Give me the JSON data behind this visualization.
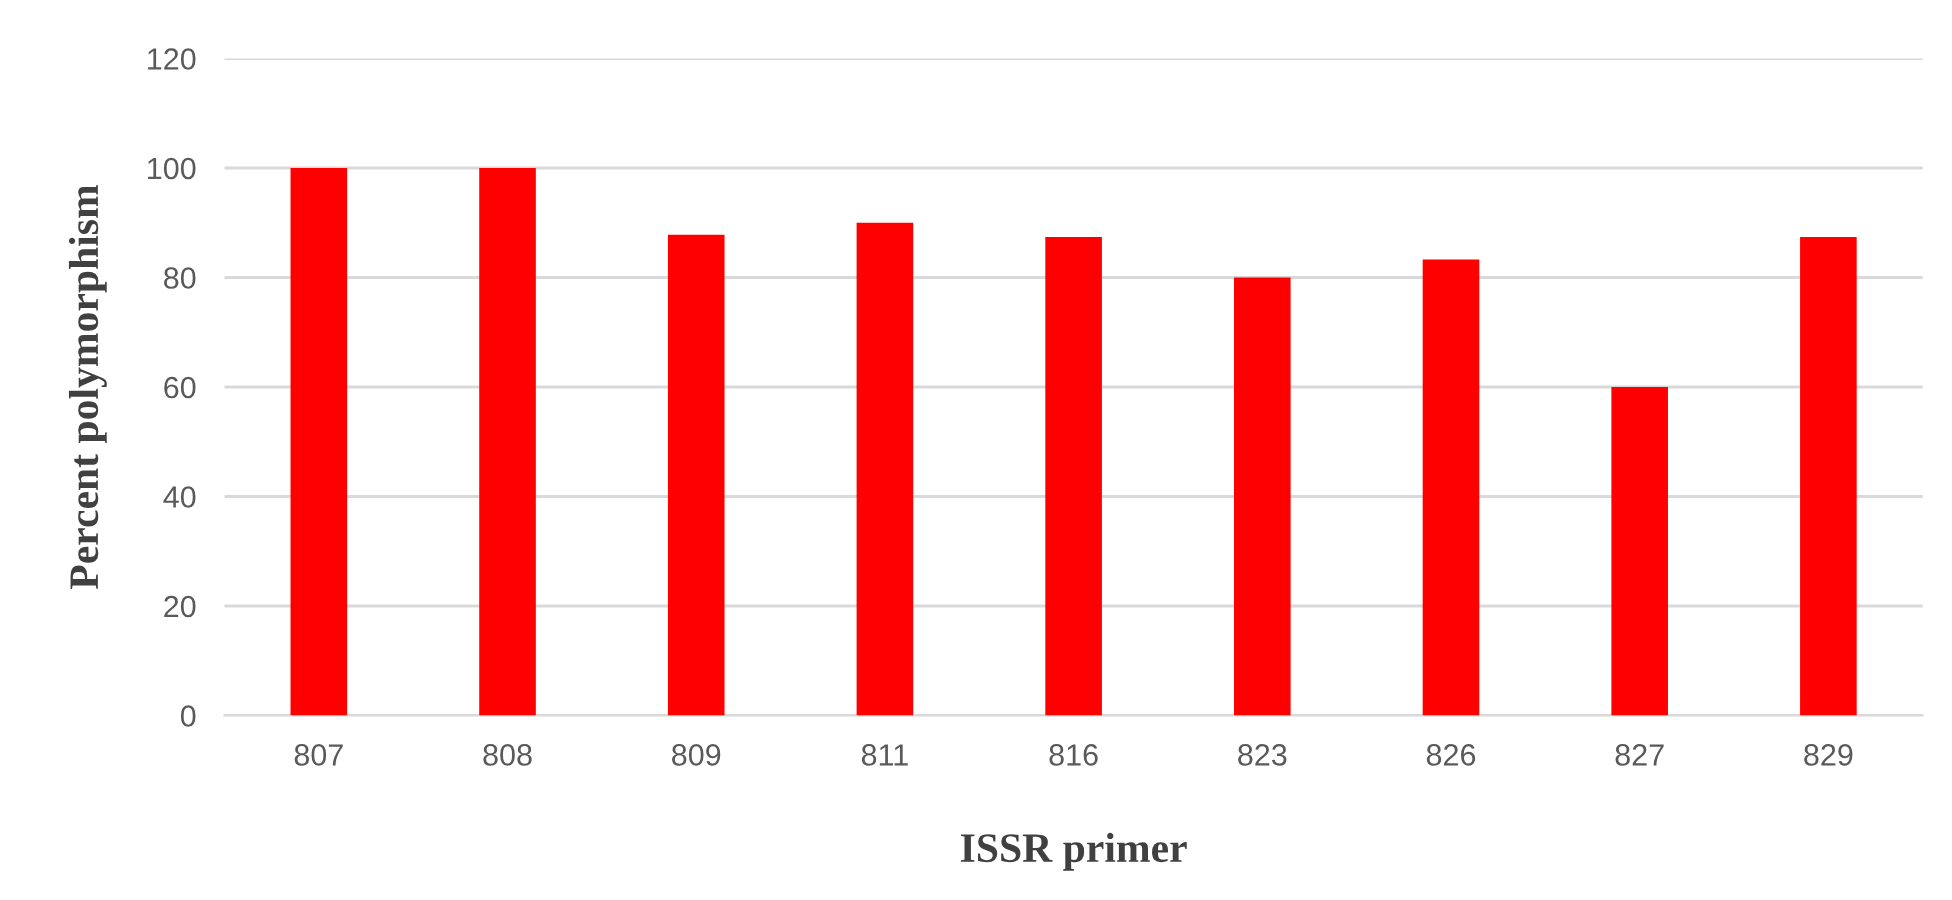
{
  "chart_data": {
    "type": "bar",
    "xlabel": "ISSR primer",
    "ylabel": "Percent polymorphism",
    "categories": [
      "807",
      "808",
      "809",
      "811",
      "816",
      "823",
      "826",
      "827",
      "829"
    ],
    "values": [
      100,
      100,
      87.8,
      90,
      87.4,
      80,
      83.3,
      60,
      87.4
    ],
    "color": "#ff0000",
    "ylim": [
      0,
      120
    ],
    "yticks": [
      0,
      20,
      40,
      60,
      80,
      100,
      120
    ],
    "grid": "y",
    "legend": false
  }
}
